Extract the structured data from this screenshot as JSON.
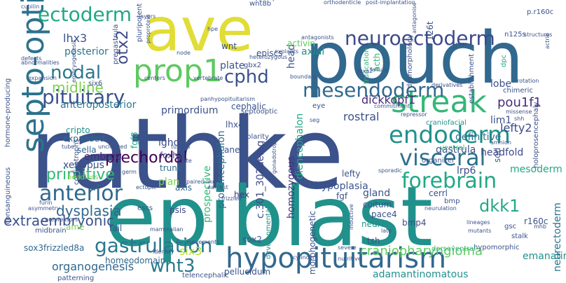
{
  "cloud": {
    "words": [
      {
        "id": "rathke",
        "text": "rathke",
        "color": "#3b528b"
      },
      {
        "id": "epiblast",
        "text": "epiblast",
        "color": "#21918c"
      },
      {
        "id": "pouch",
        "text": "pouch",
        "color": "#31688e"
      },
      {
        "id": "ave",
        "text": "ave",
        "color": "#e1dd37"
      },
      {
        "id": "septo_optic",
        "text": "septo-optic",
        "color": "#2c728e"
      },
      {
        "id": "hypopituitarism",
        "text": "hypopituitarism",
        "color": "#31688e"
      },
      {
        "id": "streak",
        "text": "streak",
        "color": "#35b779"
      },
      {
        "id": "prop1",
        "text": "prop1",
        "color": "#5ec962"
      },
      {
        "id": "endoderm",
        "text": "endoderm",
        "color": "#21918c"
      },
      {
        "id": "gastrulation",
        "text": "gastrulation",
        "color": "#2a788e"
      },
      {
        "id": "pituitary",
        "text": "pituitary",
        "color": "#3b528b"
      },
      {
        "id": "neuroectoderm",
        "text": "neuroectoderm",
        "color": "#3e4a89"
      },
      {
        "id": "ectoderm",
        "text": "ectoderm",
        "color": "#22a884"
      },
      {
        "id": "anterior",
        "text": "anterior",
        "color": "#31688e"
      },
      {
        "id": "visceral",
        "text": "visceral",
        "color": "#2c728e"
      },
      {
        "id": "mesendoderm",
        "text": "mesendoderm",
        "color": "#31688e"
      },
      {
        "id": "forebrain",
        "text": "forebrain",
        "color": "#22a884"
      },
      {
        "id": "prechordal",
        "text": "prechordal",
        "color": "#440154"
      },
      {
        "id": "nodal",
        "text": "nodal",
        "color": "#2a788e"
      },
      {
        "id": "cphd",
        "text": "cphd",
        "color": "#3b528b"
      },
      {
        "id": "wnt3",
        "text": "wnt3",
        "color": "#2a788e"
      },
      {
        "id": "otx2",
        "text": "otx2",
        "color": "#3e4a89"
      },
      {
        "id": "primitive",
        "text": "primitive",
        "color": "#35b779"
      },
      {
        "id": "extraembryonic",
        "text": "extraembryonic",
        "color": "#3b528b"
      },
      {
        "id": "midline",
        "text": "midline",
        "color": "#7ad151"
      },
      {
        "id": "dkk1",
        "text": "dkk1",
        "color": "#22a884"
      },
      {
        "id": "craniopharyngioma",
        "text": "craniopharyngioma",
        "color": "#5ec962"
      },
      {
        "id": "pou1f1",
        "text": "pou1f1",
        "color": "#472d7b"
      },
      {
        "id": "dickkopf1",
        "text": "dickkopf1",
        "color": "#482878"
      },
      {
        "id": "lhx3",
        "text": "lhx3",
        "color": "#3b528b"
      },
      {
        "id": "lefty2",
        "text": "lefty2",
        "color": "#3e4a89"
      },
      {
        "id": "dysplasia",
        "text": "dysplasia",
        "color": "#31688e"
      },
      {
        "id": "hypoplasia",
        "text": "hypoplasia",
        "color": "#3b528b"
      },
      {
        "id": "organogenesis",
        "text": "organogenesis",
        "color": "#31688e"
      },
      {
        "id": "adamantinomatous",
        "text": "adamantinomatous",
        "color": "#21918c"
      },
      {
        "id": "sox3frizzled8a",
        "text": "sox3frizzled8a",
        "color": "#31688e"
      },
      {
        "id": "six3",
        "text": "six3",
        "color": "#b5de2b"
      },
      {
        "id": "prosencephalon",
        "text": "prosencephalon",
        "color": "#2c728e"
      },
      {
        "id": "diencephalon",
        "text": "diencephalon",
        "color": "#22a884"
      },
      {
        "id": "c301",
        "text": "c.301_302delag",
        "color": "#3e4a89"
      },
      {
        "id": "homozygous",
        "text": "homozygous",
        "color": "#46327e"
      },
      {
        "id": "neurectoderm",
        "text": "neurectoderm",
        "color": "#2c728e"
      },
      {
        "id": "definitive",
        "text": "definitive",
        "color": "#2c728e"
      },
      {
        "id": "rostral",
        "text": "rostral",
        "color": "#3b528b"
      },
      {
        "id": "posterior",
        "text": "posterior",
        "color": "#2a788e"
      },
      {
        "id": "primordium",
        "text": "primordium",
        "color": "#3b528b"
      },
      {
        "id": "anteroposterior",
        "text": "anteroposterior",
        "color": "#2a788e"
      },
      {
        "id": "mesoderm",
        "text": "mesoderm",
        "color": "#22a884"
      },
      {
        "id": "gastrula",
        "text": "gastrula",
        "color": "#3b528b"
      },
      {
        "id": "headfold",
        "text": "headfold",
        "color": "#3e4a89"
      },
      {
        "id": "lrp6",
        "text": "lrp6",
        "color": "#3e4a89"
      },
      {
        "id": "xenopus",
        "text": "xenopus",
        "color": "#3b528b"
      },
      {
        "id": "embryo",
        "text": "embryo",
        "color": "#482878"
      },
      {
        "id": "expanded",
        "text": "expanded",
        "color": "#31688e"
      },
      {
        "id": "sella",
        "text": "sella",
        "color": "#31688e"
      },
      {
        "id": "cripto",
        "text": "cripto",
        "color": "#21918c"
      },
      {
        "id": "ighd",
        "text": "ighd",
        "color": "#3e4a89"
      },
      {
        "id": "foxh1",
        "text": "foxh1",
        "color": "#3e4a89"
      },
      {
        "id": "trunk",
        "text": "trunk",
        "color": "#31688e"
      },
      {
        "id": "axis",
        "text": "axis",
        "color": "#31688e"
      },
      {
        "id": "plan",
        "text": "plan",
        "color": "#7ad151"
      },
      {
        "id": "hex",
        "text": "hex",
        "color": "#472d7b"
      },
      {
        "id": "psis",
        "text": "psis",
        "color": "#3e4a89"
      },
      {
        "id": "prospective",
        "text": "prospective",
        "color": "#35b779"
      },
      {
        "id": "homeodomain",
        "text": "homeodomain",
        "color": "#31688e"
      },
      {
        "id": "sox2",
        "text": "sox2",
        "color": "#3b528b"
      },
      {
        "id": "bmp4",
        "text": "bmp4",
        "color": "#3e4a89"
      },
      {
        "id": "tsh",
        "text": "tsh",
        "color": "#3b528b"
      },
      {
        "id": "neural",
        "text": "neural",
        "color": "#21918c"
      },
      {
        "id": "morphogenetic",
        "text": "morphogenetic",
        "color": "#3b528b"
      },
      {
        "id": "r160c",
        "text": "r160c",
        "color": "#3b528b"
      },
      {
        "id": "gland",
        "text": "gland",
        "color": "#3b528b"
      },
      {
        "id": "coitum",
        "text": "coitum",
        "color": "#3b528b"
      },
      {
        "id": "pace4",
        "text": "pace4",
        "color": "#3b528b"
      },
      {
        "id": "fgf",
        "text": "fgf",
        "color": "#3b528b"
      },
      {
        "id": "lefty",
        "text": "lefty",
        "color": "#3b528b"
      },
      {
        "id": "cerrl",
        "text": "cerrl",
        "color": "#3b528b"
      },
      {
        "id": "emanating",
        "text": "emanating",
        "color": "#21918c"
      },
      {
        "id": "telencephalic",
        "text": "telencephalic",
        "color": "#3b528b"
      },
      {
        "id": "pellucidum",
        "text": "pellucidum",
        "color": "#3b528b"
      },
      {
        "id": "lim1",
        "text": "lim1",
        "color": "#3b528b"
      },
      {
        "id": "sod",
        "text": "sod",
        "color": "#3b528b"
      },
      {
        "id": "lobe",
        "text": "lobe",
        "color": "#3b528b"
      },
      {
        "id": "head",
        "text": "head",
        "color": "#3b528b"
      },
      {
        "id": "axial",
        "text": "axial",
        "color": "#21918c"
      },
      {
        "id": "truncation",
        "text": "truncation",
        "color": "#35b779"
      },
      {
        "id": "acth",
        "text": "acth",
        "color": "#35b779"
      },
      {
        "id": "dysmorphology",
        "text": "dysmorphology",
        "color": "#3b528b"
      },
      {
        "id": "establishment",
        "text": "establishment",
        "color": "#3b528b"
      },
      {
        "id": "p_r160c",
        "text": "p.r160c",
        "color": "#3b528b"
      },
      {
        "id": "dpc",
        "text": "dpc",
        "color": "#22a884"
      },
      {
        "id": "i26t",
        "text": "126t",
        "color": "#3b528b"
      },
      {
        "id": "epiblast2",
        "text": "episcs",
        "color": "#3b528b"
      },
      {
        "id": "activin",
        "text": "activin",
        "color": "#5ec962"
      },
      {
        "id": "wnt",
        "text": "wnt",
        "color": "#3b528b"
      },
      {
        "id": "gbx2",
        "text": "gbx2",
        "color": "#3b528b"
      },
      {
        "id": "plate",
        "text": "plate",
        "color": "#3b528b"
      },
      {
        "id": "cephalic",
        "text": "cephalic",
        "color": "#3b528b"
      },
      {
        "id": "lhx4",
        "text": "lhx4",
        "color": "#3b528b"
      },
      {
        "id": "polarity",
        "text": "polarity",
        "color": "#3b528b"
      },
      {
        "id": "septooptic",
        "text": "septooptic",
        "color": "#3b528b"
      },
      {
        "id": "chimeric",
        "text": "chimeric",
        "color": "#3b528b"
      },
      {
        "id": "craniofacial",
        "text": "craniofacial",
        "color": "#21918c"
      },
      {
        "id": "ventral",
        "text": "ventral",
        "color": "#35b779"
      },
      {
        "id": "organizer",
        "text": "organizer",
        "color": "#3b528b"
      },
      {
        "id": "holoprosencephaly",
        "text": "holoprosencephaly",
        "color": "#3b528b"
      },
      {
        "id": "fgf8",
        "text": "fgf8",
        "color": "#22a884"
      },
      {
        "id": "corticotrophs",
        "text": "corticotrophs",
        "color": "#3b528b"
      },
      {
        "id": "six6",
        "text": "six6",
        "color": "#3b528b"
      },
      {
        "id": "pregastrula",
        "text": "pregastrula",
        "color": "#3b528b"
      },
      {
        "id": "pluripotent",
        "text": "pluripotent",
        "color": "#3b528b"
      },
      {
        "id": "embryogenesis",
        "text": "embryogenesis",
        "color": "#3b528b"
      },
      {
        "id": "consanguineous",
        "text": "consanguineous",
        "color": "#3b528b"
      },
      {
        "id": "hormone_producing",
        "text": "hormone-producing",
        "color": "#3b528b"
      },
      {
        "id": "headless",
        "text": "headless",
        "color": "#7ad151"
      },
      {
        "id": "midbrain",
        "text": "midbrain",
        "color": "#3b528b"
      },
      {
        "id": "ame",
        "text": "ame",
        "color": "#7ad151"
      },
      {
        "id": "fail",
        "text": "fail",
        "color": "#3b528b"
      },
      {
        "id": "ectopic",
        "text": "ectopic",
        "color": "#3b528b"
      },
      {
        "id": "escs",
        "text": "escs",
        "color": "#3b528b"
      },
      {
        "id": "mammalian",
        "text": "mammalian",
        "color": "#3b528b"
      },
      {
        "id": "developmental",
        "text": "developmental",
        "color": "#21918c"
      },
      {
        "id": "neurulation",
        "text": "neurulation",
        "color": "#3b528b"
      },
      {
        "id": "gsc",
        "text": "gsc",
        "color": "#3b528b"
      },
      {
        "id": "stalk",
        "text": "stalk",
        "color": "#3b528b"
      },
      {
        "id": "hypomorphic",
        "text": "hypomorphic",
        "color": "#3b528b"
      },
      {
        "id": "dorsoventral",
        "text": "dorsoventral",
        "color": "#35b779"
      },
      {
        "id": "severe",
        "text": "severe",
        "color": "#3b528b"
      },
      {
        "id": "cylinder",
        "text": "cylinder",
        "color": "#3b528b"
      },
      {
        "id": "nutritive",
        "text": "nutritive",
        "color": "#3b528b"
      },
      {
        "id": "patterning",
        "text": "patterning",
        "color": "#3b528b"
      },
      {
        "id": "movements",
        "text": "movements",
        "color": "#3b528b"
      },
      {
        "id": "identity",
        "text": "identity",
        "color": "#3b528b"
      },
      {
        "id": "wnt8b",
        "text": "wnt8b",
        "color": "#3b528b"
      },
      {
        "id": "heterozygosity",
        "text": "heterozygosity",
        "color": "#3b528b"
      },
      {
        "id": "orthodenticle",
        "text": "orthodenticle",
        "color": "#3b528b"
      },
      {
        "id": "post_implantation",
        "text": "post-implantation",
        "color": "#3b528b"
      },
      {
        "id": "cubilin",
        "text": "cubilin",
        "color": "#3b528b"
      },
      {
        "id": "structures",
        "text": "structures",
        "color": "#3b528b"
      },
      {
        "id": "n125s",
        "text": "n125s",
        "color": "#3b528b"
      },
      {
        "id": "explants",
        "text": "explants",
        "color": "#3b528b"
      },
      {
        "id": "antagonists",
        "text": "antagonists",
        "color": "#3b528b"
      },
      {
        "id": "heterozygous",
        "text": "heterozygous",
        "color": "#3b528b"
      },
      {
        "id": "vertebrate",
        "text": "vertebrate",
        "color": "#3b528b"
      },
      {
        "id": "expansion",
        "text": "expansion",
        "color": "#3b528b"
      },
      {
        "id": "centers",
        "text": "centers",
        "color": "#3b528b"
      },
      {
        "id": "node",
        "text": "node",
        "color": "#3b528b"
      },
      {
        "id": "boundary",
        "text": "boundary",
        "color": "#3b528b"
      },
      {
        "id": "foxa2",
        "text": "foxa2",
        "color": "#3b528b"
      },
      {
        "id": "failure",
        "text": "failure",
        "color": "#3b528b"
      },
      {
        "id": "derivatives",
        "text": "derivatives",
        "color": "#3b528b"
      },
      {
        "id": "missense",
        "text": "missense",
        "color": "#3b528b"
      },
      {
        "id": "commitment",
        "text": "commitment",
        "color": "#3b528b"
      },
      {
        "id": "repressor",
        "text": "repressor",
        "color": "#3b528b"
      },
      {
        "id": "amnion",
        "text": "amnion",
        "color": "#3b528b"
      },
      {
        "id": "sporadic",
        "text": "sporadic",
        "color": "#3b528b"
      },
      {
        "id": "furin",
        "text": "furin",
        "color": "#3b528b"
      },
      {
        "id": "asymmetry",
        "text": "asymmetry",
        "color": "#3b528b"
      },
      {
        "id": "corepressors",
        "text": "corepressors",
        "color": "#3b528b"
      },
      {
        "id": "paired_like",
        "text": "paired-like",
        "color": "#3b528b"
      },
      {
        "id": "earliest",
        "text": "earliest",
        "color": "#3b528b"
      },
      {
        "id": "frizzled",
        "text": "frizzled",
        "color": "#3b528b"
      },
      {
        "id": "inductive",
        "text": "inductive",
        "color": "#3b528b"
      },
      {
        "id": "lineages",
        "text": "lineages",
        "color": "#3b528b"
      },
      {
        "id": "mutants",
        "text": "mutants",
        "color": "#3b528b"
      },
      {
        "id": "late",
        "text": "late",
        "color": "#3b528b"
      },
      {
        "id": "mhb",
        "text": "mhb",
        "color": "#3b528b"
      },
      {
        "id": "tube",
        "text": "tube",
        "color": "#3b528b"
      },
      {
        "id": "uncleaved",
        "text": "uncleaved",
        "color": "#3b528b"
      },
      {
        "id": "germ",
        "text": "germ",
        "color": "#3b528b"
      },
      {
        "id": "turcica",
        "text": "turcica",
        "color": "#3b528b"
      },
      {
        "id": "fate",
        "text": "fate",
        "color": "#3b528b"
      },
      {
        "id": "ane",
        "text": "ane",
        "color": "#3b528b"
      },
      {
        "id": "gonadotrophs",
        "text": "gonadotrophs",
        "color": "#3b528b"
      },
      {
        "id": "eye",
        "text": "eye",
        "color": "#3b528b"
      },
      {
        "id": "panhypopituitarism",
        "text": "panhypopituitarism",
        "color": "#3b528b"
      },
      {
        "id": "layers",
        "text": "layers",
        "color": "#3b528b"
      },
      {
        "id": "hpe",
        "text": "hpe",
        "color": "#3b528b"
      },
      {
        "id": "defects",
        "text": "defects",
        "color": "#3b528b"
      },
      {
        "id": "abnormalities",
        "text": "abnormalities",
        "color": "#3b528b"
      },
      {
        "id": "proprotein",
        "text": "proprotein",
        "color": "#3b528b"
      },
      {
        "id": "antagonise",
        "text": "antagonise",
        "color": "#3b528b"
      },
      {
        "id": "tlc",
        "text": "tlc",
        "color": "#3b528b"
      },
      {
        "id": "rotation",
        "text": "rotation",
        "color": "#3b528b"
      },
      {
        "id": "actrib",
        "text": "actrib",
        "color": "#3b528b"
      },
      {
        "id": "shh",
        "text": "shh",
        "color": "#3b528b"
      },
      {
        "id": "seg",
        "text": "seg",
        "color": "#3b528b"
      },
      {
        "id": "bmp",
        "text": "bmp",
        "color": "#3b528b"
      }
    ]
  }
}
